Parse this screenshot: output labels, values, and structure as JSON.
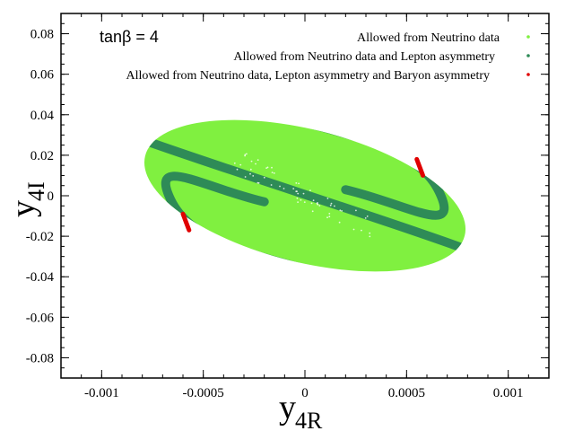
{
  "chart_data": {
    "type": "scatter",
    "annotation": "tanβ = 4",
    "xlabel": {
      "main": "y",
      "sub": "4R"
    },
    "ylabel": {
      "main": "y",
      "sub": "4I"
    },
    "xlim": [
      -0.0012,
      0.0012
    ],
    "ylim": [
      -0.09,
      0.09
    ],
    "xticks": [
      {
        "value": -0.001,
        "label": "-0.001"
      },
      {
        "value": -0.0005,
        "label": "-0.0005"
      },
      {
        "value": 0,
        "label": "0"
      },
      {
        "value": 0.0005,
        "label": "0.0005"
      },
      {
        "value": 0.001,
        "label": "0.001"
      }
    ],
    "yticks": [
      {
        "value": 0.08,
        "label": "0.08"
      },
      {
        "value": 0.06,
        "label": "0.06"
      },
      {
        "value": 0.04,
        "label": "0.04"
      },
      {
        "value": 0.02,
        "label": "0.02"
      },
      {
        "value": 0,
        "label": "0"
      },
      {
        "value": -0.02,
        "label": "-0.02"
      },
      {
        "value": -0.04,
        "label": "-0.04"
      },
      {
        "value": -0.06,
        "label": "-0.06"
      },
      {
        "value": -0.08,
        "label": "-0.08"
      }
    ],
    "legend_position": "top-right",
    "series": [
      {
        "name": "Allowed from Neutrino data",
        "color": "#80f040",
        "shape": "ellipse region",
        "center": [
          0,
          0
        ],
        "x_extent": [
          -0.00081,
          0.00081
        ],
        "y_extent": [
          -0.042,
          0.042
        ],
        "tilt": "down-right"
      },
      {
        "name": "Allowed from Neutrino data and Lepton asymmetry",
        "color": "#2e8b57",
        "shape": "S-shaped bands",
        "outer_band_endpoints": [
          [
            -0.00077,
            0.026
          ],
          [
            0.00077,
            -0.026
          ]
        ],
        "upper_band_x": [
          -0.00025,
          0.0007
        ],
        "lower_band_x": [
          -0.0007,
          0.00025
        ],
        "loops": [
          [
            0.00065,
            -0.002
          ],
          [
            -0.00065,
            0.002
          ]
        ]
      },
      {
        "name": "Allowed from Neutrino data, Lepton asymmetry and Baryon asymmetry",
        "color": "#e00000",
        "shape": "small segments",
        "segments": [
          [
            [
              0.00055,
              0.018
            ],
            [
              0.00058,
              0.01
            ]
          ],
          [
            [
              -0.0006,
              -0.009
            ],
            [
              -0.00057,
              -0.017
            ]
          ]
        ]
      }
    ]
  }
}
